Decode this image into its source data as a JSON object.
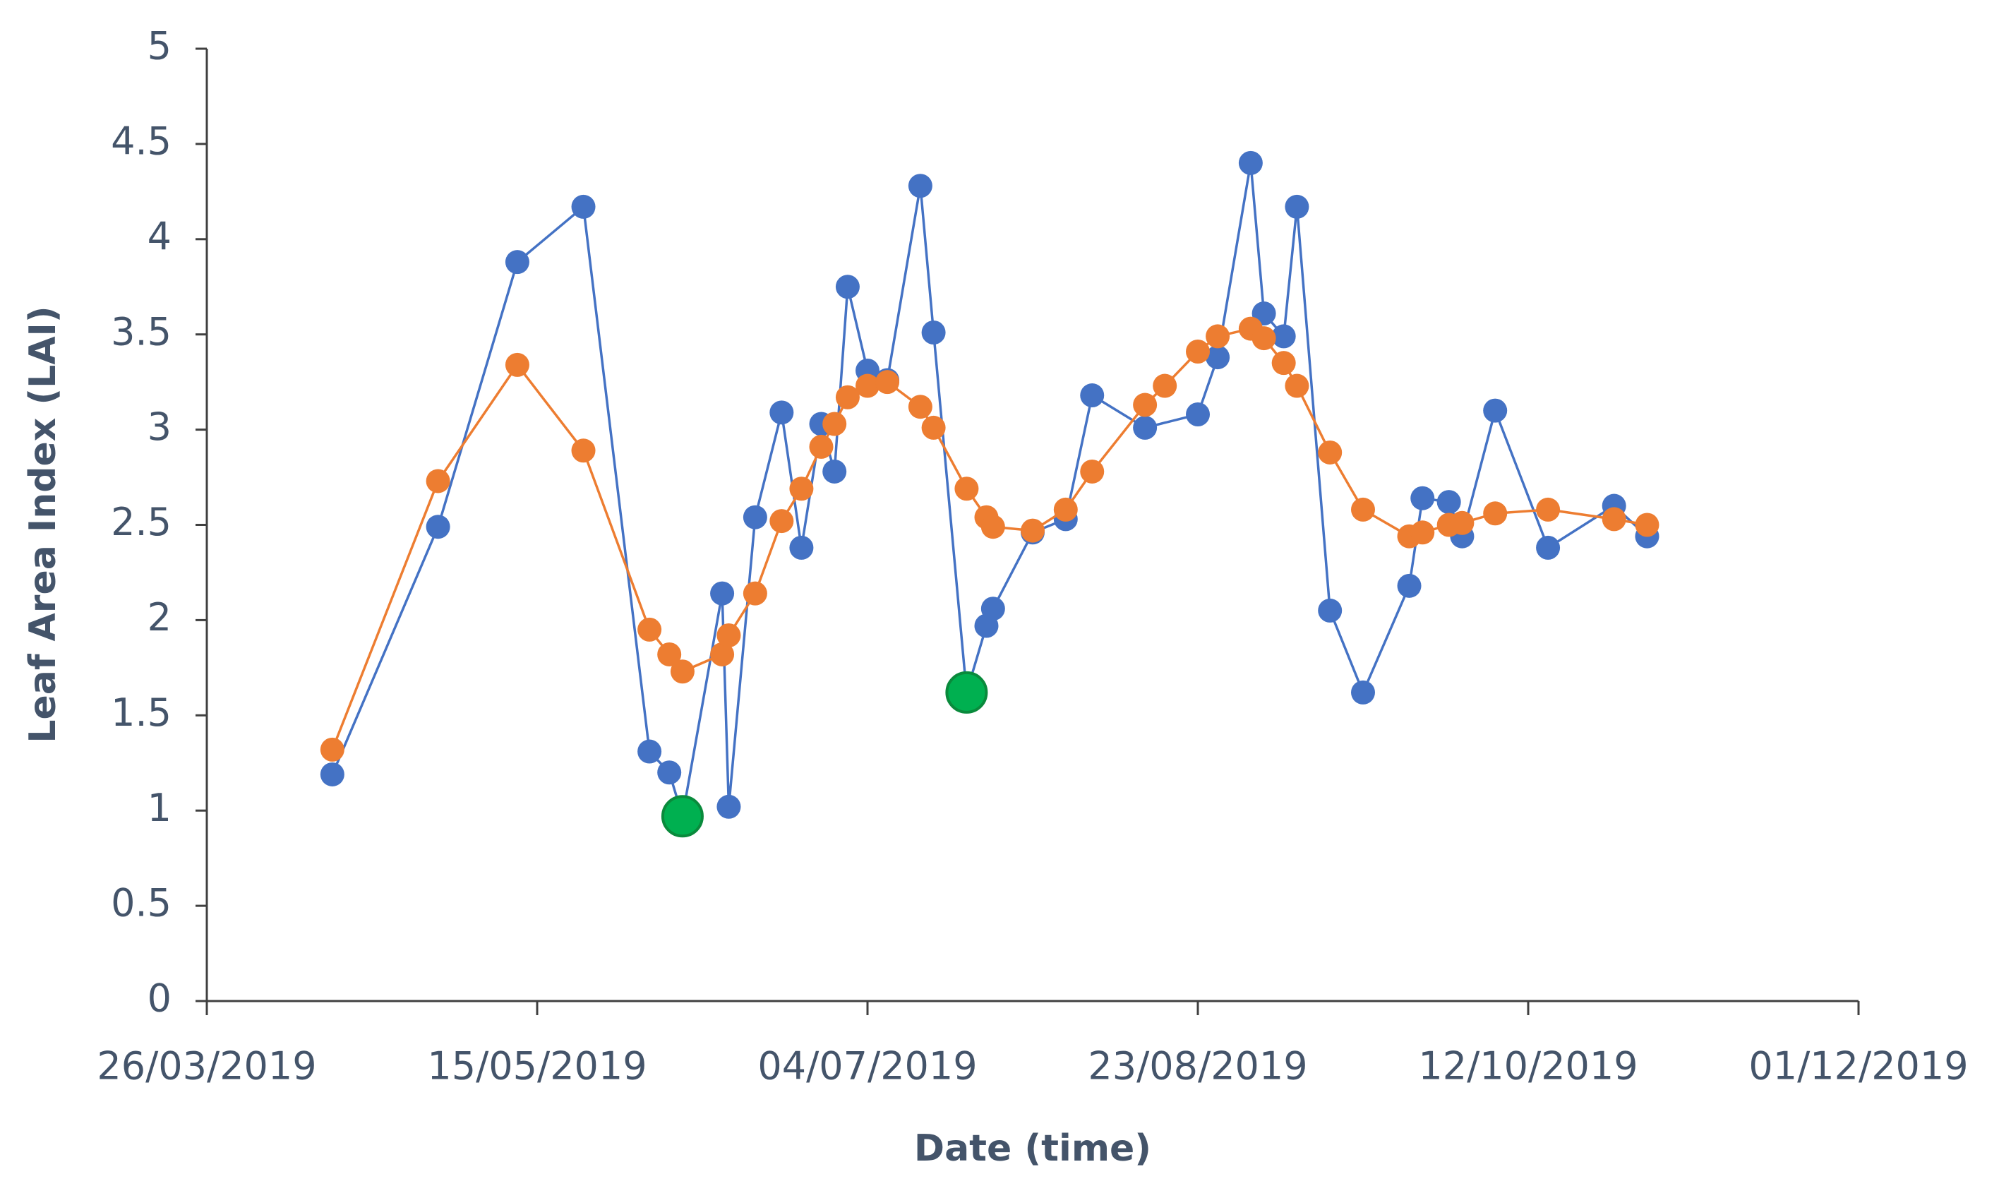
{
  "chart_data": {
    "type": "line",
    "x_label": "Date (time)",
    "y_label": "Leaf Area Index (LAI)",
    "xlim": [
      "26/03/2019",
      "01/12/2019"
    ],
    "xticks": [
      "26/03/2019",
      "15/05/2019",
      "04/07/2019",
      "23/08/2019",
      "12/10/2019",
      "01/12/2019"
    ],
    "ylim": [
      0,
      5
    ],
    "yticks": [
      0,
      0.5,
      1,
      1.5,
      2,
      2.5,
      3,
      3.5,
      4,
      4.5,
      5
    ],
    "grid": false,
    "series": [
      {
        "color": "#4472c4",
        "mode": "lines+markers",
        "x": [
          "14/04/2019",
          "30/04/2019",
          "12/05/2019",
          "22/05/2019",
          "01/06/2019",
          "04/06/2019",
          "06/06/2019",
          "12/06/2019",
          "13/06/2019",
          "17/06/2019",
          "21/06/2019",
          "24/06/2019",
          "27/06/2019",
          "29/06/2019",
          "01/07/2019",
          "04/07/2019",
          "07/07/2019",
          "12/07/2019",
          "14/07/2019",
          "19/07/2019",
          "22/07/2019",
          "23/07/2019",
          "29/07/2019",
          "03/08/2019",
          "07/08/2019",
          "15/08/2019",
          "23/08/2019",
          "26/08/2019",
          "31/08/2019",
          "02/09/2019",
          "05/09/2019",
          "07/09/2019",
          "12/09/2019",
          "17/09/2019",
          "24/09/2019",
          "26/09/2019",
          "30/09/2019",
          "02/10/2019",
          "07/10/2019",
          "15/10/2019",
          "25/10/2019",
          "30/10/2019"
        ],
        "values": [
          1.19,
          2.49,
          3.88,
          4.17,
          1.31,
          1.2,
          0.97,
          2.14,
          1.02,
          2.54,
          3.09,
          2.38,
          3.03,
          2.78,
          3.75,
          3.31,
          3.26,
          4.28,
          3.51,
          1.62,
          1.97,
          2.06,
          2.46,
          2.53,
          3.18,
          3.01,
          3.08,
          3.38,
          4.4,
          3.61,
          3.49,
          4.17,
          2.05,
          1.62,
          2.18,
          2.64,
          2.62,
          2.44,
          3.1,
          2.38,
          2.6,
          2.44
        ]
      },
      {
        "color": "#ed7d31",
        "mode": "lines+markers",
        "x": [
          "14/04/2019",
          "30/04/2019",
          "12/05/2019",
          "22/05/2019",
          "01/06/2019",
          "04/06/2019",
          "06/06/2019",
          "12/06/2019",
          "13/06/2019",
          "17/06/2019",
          "21/06/2019",
          "24/06/2019",
          "27/06/2019",
          "29/06/2019",
          "01/07/2019",
          "04/07/2019",
          "07/07/2019",
          "12/07/2019",
          "14/07/2019",
          "19/07/2019",
          "22/07/2019",
          "23/07/2019",
          "29/07/2019",
          "03/08/2019",
          "07/08/2019",
          "15/08/2019",
          "18/08/2019",
          "23/08/2019",
          "26/08/2019",
          "31/08/2019",
          "02/09/2019",
          "05/09/2019",
          "07/09/2019",
          "12/09/2019",
          "17/09/2019",
          "24/09/2019",
          "26/09/2019",
          "30/09/2019",
          "02/10/2019",
          "07/10/2019",
          "15/10/2019",
          "25/10/2019",
          "30/10/2019"
        ],
        "values": [
          1.32,
          2.73,
          3.34,
          2.89,
          1.95,
          1.82,
          1.73,
          1.82,
          1.92,
          2.14,
          2.52,
          2.69,
          2.91,
          3.03,
          3.17,
          3.23,
          3.25,
          3.12,
          3.01,
          2.69,
          2.54,
          2.49,
          2.47,
          2.58,
          2.78,
          3.13,
          3.23,
          3.41,
          3.49,
          3.53,
          3.48,
          3.35,
          3.23,
          2.88,
          2.58,
          2.44,
          2.46,
          2.5,
          2.51,
          2.56,
          2.58,
          2.53,
          2.5
        ]
      },
      {
        "color": "#00b050",
        "mode": "markers",
        "x": [
          "06/06/2019",
          "19/07/2019"
        ],
        "values": [
          0.97,
          1.62
        ]
      }
    ]
  }
}
